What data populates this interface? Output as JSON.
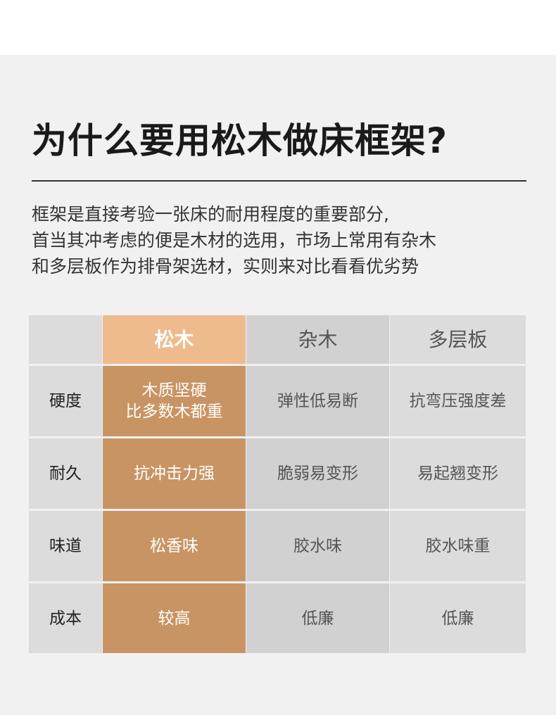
{
  "title": "为什么要用松木做床框架?",
  "intro": [
    "框架是直接考验一张床的耐用程度的重要部分,",
    "首当其冲考虑的便是木材的选用，市场上常用有杂木",
    "和多层板作为排骨架选材，实则来对比看看优劣势"
  ],
  "table": {
    "headers": [
      "",
      "松木",
      "杂木",
      "多层板"
    ],
    "rows": [
      {
        "label": "硬度",
        "pine": [
          "木质坚硬",
          "比多数木都重"
        ],
        "mixed": "弹性低易断",
        "plywood": "抗弯压强度差"
      },
      {
        "label": "耐久",
        "pine": [
          "抗冲击力强"
        ],
        "mixed": "脆弱易变形",
        "plywood": "易起翘变形"
      },
      {
        "label": "味道",
        "pine": [
          "松香味"
        ],
        "mixed": "胶水味",
        "plywood": "胶水味重"
      },
      {
        "label": "成本",
        "pine": [
          "较高"
        ],
        "mixed": "低廉",
        "plywood": "低廉"
      }
    ]
  },
  "colors": {
    "pine_header": "#eebb8c",
    "pine_cell": "#c99463",
    "mixed": "#d1d1d1",
    "plywood": "#dcdcdc"
  }
}
